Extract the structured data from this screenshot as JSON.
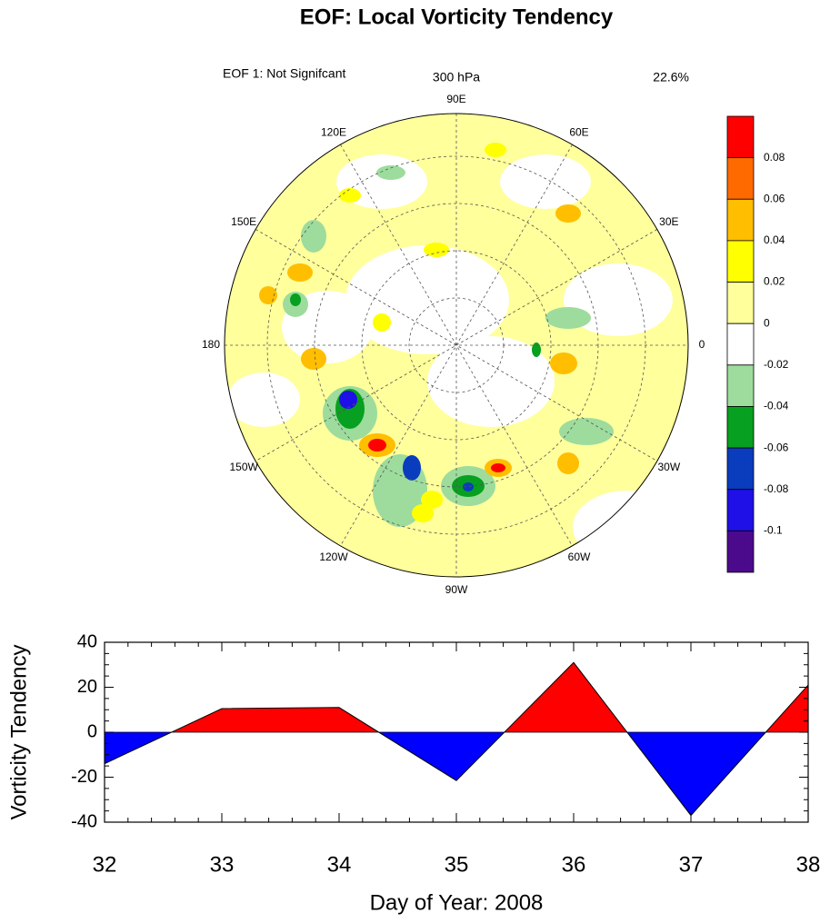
{
  "title": "EOF: Local Vorticity Tendency",
  "map": {
    "left_string": "EOF 1: Not Signifcant",
    "center_string": "300 hPa",
    "right_string": "22.6%",
    "longitude_labels": [
      "90E",
      "60E",
      "30E",
      "0",
      "30W",
      "60W",
      "90W",
      "120W",
      "150W",
      "180",
      "150E",
      "120E"
    ],
    "colorbar": {
      "levels": [
        0.08,
        0.06,
        0.04,
        0.02,
        0,
        -0.02,
        -0.04,
        -0.06,
        -0.08,
        -0.1
      ],
      "colors": [
        "#ff0000",
        "#ff6a00",
        "#ffbe00",
        "#ffff00",
        "#ffff9c",
        "#ffffff",
        "#9ddc9d",
        "#08a020",
        "#0a3cbe",
        "#1e10e6",
        "#4b0a8c"
      ]
    }
  },
  "chart_data": {
    "type": "area",
    "x": [
      32,
      33,
      34,
      35,
      36,
      37,
      38
    ],
    "values": [
      -14,
      10.5,
      11,
      -21.5,
      31,
      -37,
      21
    ],
    "xlim": [
      32,
      38
    ],
    "ylim": [
      -40,
      40
    ],
    "xticks": [
      32,
      33,
      34,
      35,
      36,
      37,
      38
    ],
    "yticks": [
      -40,
      -20,
      0,
      20,
      40
    ],
    "ylabel": "Vorticity Tendency",
    "xlabel": "Day of Year: 2008",
    "above_color": "#ff0000",
    "below_color": "#0000ff"
  }
}
